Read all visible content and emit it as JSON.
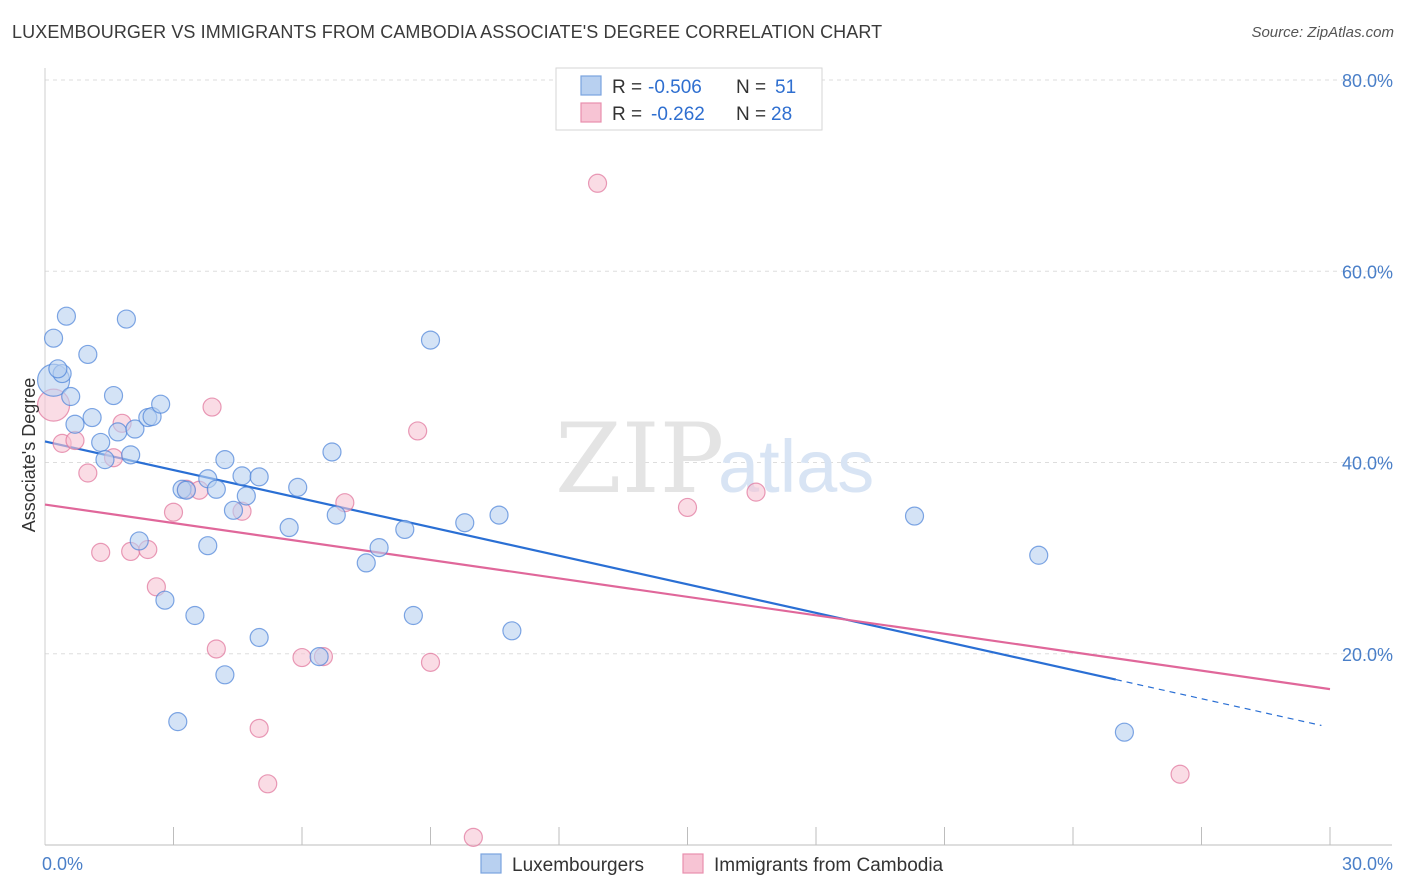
{
  "title": "LUXEMBOURGER VS IMMIGRANTS FROM CAMBODIA ASSOCIATE'S DEGREE CORRELATION CHART",
  "source": "Source: ZipAtlas.com",
  "watermark": {
    "zip": "ZIP",
    "atlas": "atlas"
  },
  "colors": {
    "blue": "#4a82d8",
    "blue_fill": "#b8d0f0",
    "blue_line": "#2a6fd4",
    "pink": "#e0729a",
    "pink_fill": "#f7c4d4",
    "pink_line": "#e0679a",
    "grid": "#dddddd",
    "axis_text": "#4a7fc8"
  },
  "legend": {
    "rows": [
      {
        "r_label": "R =",
        "r_value": "-0.506",
        "n_label": "N =",
        "n_value": "51"
      },
      {
        "r_label": "R =",
        "r_value": "-0.262",
        "n_label": "N =",
        "n_value": "28"
      }
    ]
  },
  "chart_data": {
    "type": "scatter",
    "title": "LUXEMBOURGER VS IMMIGRANTS FROM CAMBODIA ASSOCIATE'S DEGREE CORRELATION CHART",
    "xlabel": "",
    "ylabel": "Associate's Degree",
    "xlim": [
      0,
      30
    ],
    "ylim": [
      0,
      80
    ],
    "x_ticks": [
      {
        "value": 0,
        "label": "0.0%"
      },
      {
        "value": 30,
        "label": "30.0%"
      }
    ],
    "y_ticks": [
      {
        "value": 20,
        "label": "20.0%"
      },
      {
        "value": 40,
        "label": "40.0%"
      },
      {
        "value": 60,
        "label": "60.0%"
      },
      {
        "value": 80,
        "label": "80.0%"
      }
    ],
    "grid": true,
    "legend_position": "top-center",
    "series": [
      {
        "name": "Luxembourgers",
        "color": "#4a82d8",
        "trend": {
          "x0": 0,
          "y0": 42.2,
          "x1": 25,
          "y1": 17.3,
          "dash_to_x": 29.8,
          "dash_to_y": 12.5
        },
        "points": [
          [
            0.2,
            48.6
          ],
          [
            0.2,
            53.0
          ],
          [
            0.4,
            49.3
          ],
          [
            0.5,
            55.3
          ],
          [
            0.6,
            46.9
          ],
          [
            0.7,
            44.0
          ],
          [
            1.0,
            51.3
          ],
          [
            1.1,
            44.7
          ],
          [
            1.3,
            42.1
          ],
          [
            1.4,
            40.3
          ],
          [
            1.6,
            47.0
          ],
          [
            1.7,
            43.2
          ],
          [
            1.9,
            55.0
          ],
          [
            2.0,
            40.8
          ],
          [
            2.1,
            43.5
          ],
          [
            2.2,
            31.8
          ],
          [
            2.4,
            44.7
          ],
          [
            2.5,
            44.8
          ],
          [
            2.7,
            46.1
          ],
          [
            2.8,
            25.6
          ],
          [
            3.1,
            12.9
          ],
          [
            3.2,
            37.2
          ],
          [
            3.3,
            37.1
          ],
          [
            3.5,
            24.0
          ],
          [
            3.8,
            31.3
          ],
          [
            3.8,
            38.3
          ],
          [
            4.0,
            37.2
          ],
          [
            4.2,
            40.3
          ],
          [
            4.2,
            17.8
          ],
          [
            4.4,
            35.0
          ],
          [
            4.6,
            38.6
          ],
          [
            4.7,
            36.5
          ],
          [
            5.0,
            38.5
          ],
          [
            5.0,
            21.7
          ],
          [
            5.7,
            33.2
          ],
          [
            5.9,
            37.4
          ],
          [
            6.4,
            19.7
          ],
          [
            6.7,
            41.1
          ],
          [
            6.8,
            34.5
          ],
          [
            7.5,
            29.5
          ],
          [
            7.8,
            31.1
          ],
          [
            8.4,
            33.0
          ],
          [
            8.6,
            24.0
          ],
          [
            9.0,
            52.8
          ],
          [
            9.8,
            33.7
          ],
          [
            10.6,
            34.5
          ],
          [
            10.9,
            22.4
          ],
          [
            20.3,
            34.4
          ],
          [
            23.2,
            30.3
          ],
          [
            25.2,
            11.8
          ],
          [
            0.3,
            49.8
          ]
        ]
      },
      {
        "name": "Immigrants from Cambodia",
        "color": "#e0729a",
        "trend": {
          "x0": 0,
          "y0": 35.6,
          "x1": 30,
          "y1": 16.3
        },
        "points": [
          [
            0.2,
            46.0
          ],
          [
            0.4,
            42.0
          ],
          [
            0.7,
            42.3
          ],
          [
            1.0,
            38.9
          ],
          [
            1.3,
            30.6
          ],
          [
            1.6,
            40.5
          ],
          [
            1.8,
            44.1
          ],
          [
            2.0,
            30.7
          ],
          [
            2.4,
            30.9
          ],
          [
            2.6,
            27.0
          ],
          [
            3.0,
            34.8
          ],
          [
            3.3,
            37.2
          ],
          [
            3.6,
            37.1
          ],
          [
            3.9,
            45.8
          ],
          [
            4.0,
            20.5
          ],
          [
            4.6,
            34.9
          ],
          [
            5.0,
            12.2
          ],
          [
            5.2,
            6.4
          ],
          [
            6.0,
            19.6
          ],
          [
            6.5,
            19.7
          ],
          [
            7.0,
            35.8
          ],
          [
            8.7,
            43.3
          ],
          [
            9.0,
            19.1
          ],
          [
            10.0,
            0.8
          ],
          [
            12.9,
            69.2
          ],
          [
            15.0,
            35.3
          ],
          [
            16.6,
            36.9
          ],
          [
            26.5,
            7.4
          ]
        ]
      }
    ]
  }
}
